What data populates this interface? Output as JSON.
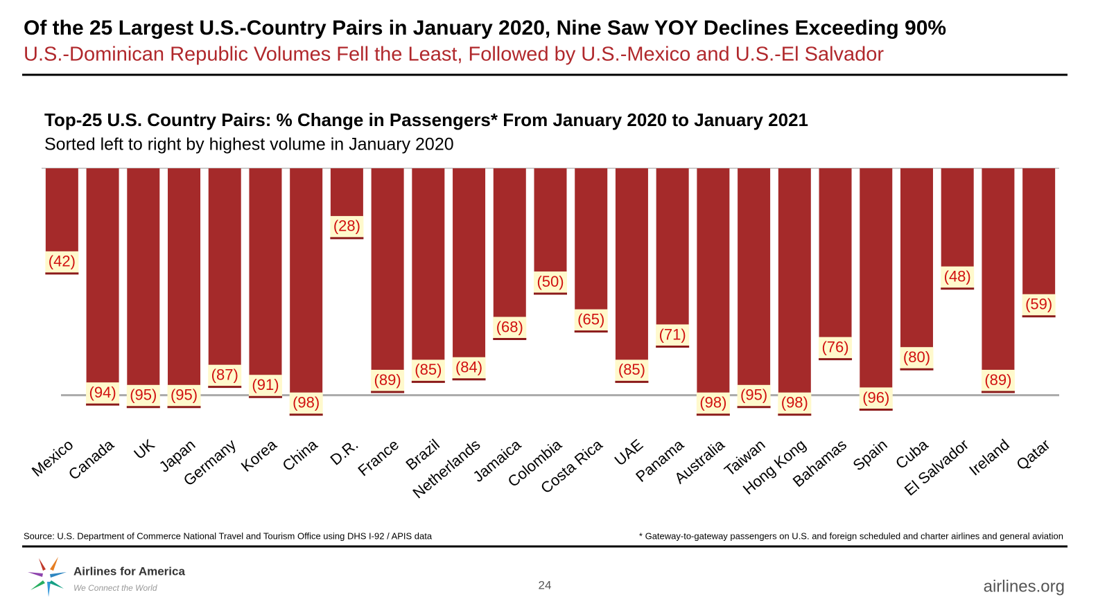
{
  "slide": {
    "title": "Of the 25 Largest U.S.-Country Pairs in January 2020, Nine Saw YOY Declines Exceeding 90%",
    "subtitle": "U.S.-Dominican Republic Volumes Fell the Least, Followed by U.S.-Mexico and U.S.-El Salvador",
    "source": "Source: U.S. Department of Commerce National Travel and Tourism Office using DHS I-92 / APIS data",
    "footnote": "* Gateway-to-gateway passengers on U.S. and foreign scheduled and charter airlines and general aviation",
    "logo_name": "Airlines for America",
    "logo_tagline": "We Connect the World",
    "page_number": "24",
    "website": "airlines.org"
  },
  "chart_data": {
    "type": "bar",
    "title": "Top-25 U.S. Country Pairs: % Change in Passengers* From January 2020 to January 2021",
    "subtitle": "Sorted left to right by highest volume in January 2020",
    "categories": [
      "Mexico",
      "Canada",
      "UK",
      "Japan",
      "Germany",
      "Korea",
      "China",
      "D.R.",
      "France",
      "Brazil",
      "Netherlands",
      "Jamaica",
      "Colombia",
      "Costa Rica",
      "UAE",
      "Panama",
      "Australia",
      "Taiwan",
      "Hong Kong",
      "Bahamas",
      "Spain",
      "Cuba",
      "El Salvador",
      "Ireland",
      "Qatar"
    ],
    "values": [
      -42,
      -94,
      -95,
      -95,
      -87,
      -91,
      -98,
      -28,
      -89,
      -85,
      -84,
      -68,
      -50,
      -65,
      -85,
      -71,
      -98,
      -95,
      -98,
      -76,
      -96,
      -80,
      -48,
      -89,
      -59
    ],
    "value_labels": [
      "(42)",
      "(94)",
      "(95)",
      "(95)",
      "(87)",
      "(91)",
      "(98)",
      "(28)",
      "(89)",
      "(85)",
      "(84)",
      "(68)",
      "(50)",
      "(65)",
      "(85)",
      "(71)",
      "(98)",
      "(95)",
      "(98)",
      "(76)",
      "(96)",
      "(80)",
      "(48)",
      "(89)",
      "(59)"
    ],
    "color": "#a52a2a",
    "ylim": [
      -100,
      0
    ],
    "reference_line": -90
  }
}
